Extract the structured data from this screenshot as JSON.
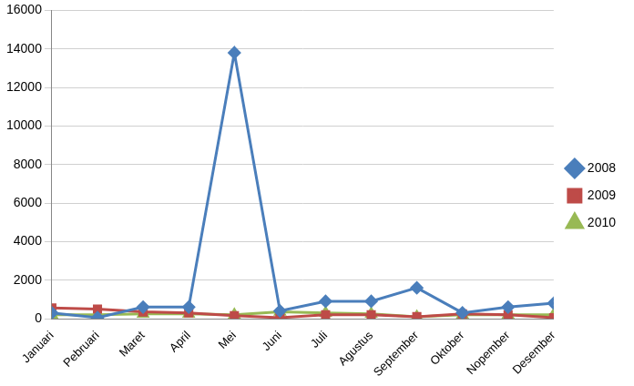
{
  "chart_data": {
    "type": "line",
    "categories": [
      "Januari",
      "Pebruari",
      "Maret",
      "April",
      "Mei",
      "Juni",
      "Juli",
      "Agustus",
      "September",
      "Oktober",
      "Nopember",
      "Desember"
    ],
    "series": [
      {
        "name": "2008",
        "color": "#4a7ebb",
        "marker": "diamond",
        "values": [
          300,
          50,
          600,
          600,
          13800,
          400,
          900,
          900,
          1600,
          300,
          600,
          800
        ]
      },
      {
        "name": "2009",
        "color": "#be4b48",
        "marker": "square",
        "values": [
          550,
          500,
          350,
          300,
          150,
          50,
          200,
          200,
          100,
          250,
          200,
          50
        ]
      },
      {
        "name": "2010",
        "color": "#98b954",
        "marker": "triangle",
        "values": [
          200,
          200,
          250,
          250,
          200,
          350,
          300,
          250,
          100,
          200,
          200,
          200
        ]
      }
    ],
    "ylim": [
      0,
      16000
    ],
    "yticks": [
      0,
      2000,
      4000,
      6000,
      8000,
      10000,
      12000,
      14000,
      16000
    ],
    "grid": true,
    "legend": "right"
  }
}
